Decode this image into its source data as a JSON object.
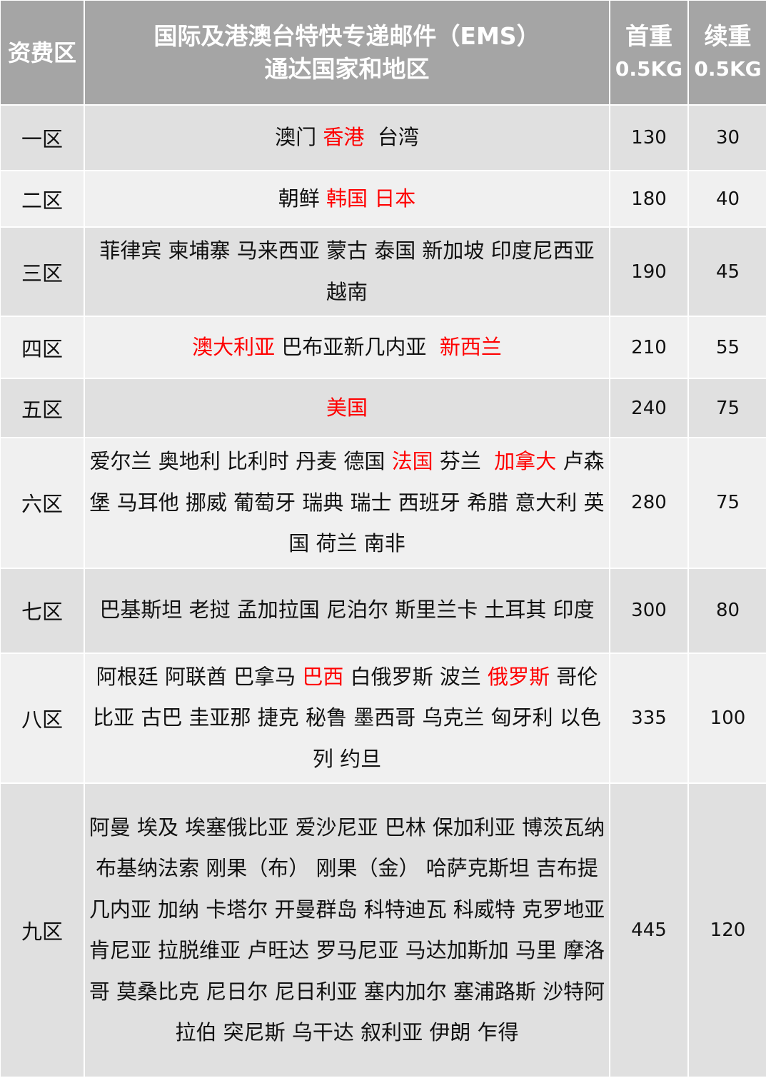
{
  "header": {
    "zone": "资费区",
    "regions_line1": "国际及港澳台特快专递邮件（EMS）",
    "regions_line2": "通达国家和地区",
    "first_weight": "首重",
    "first_weight_unit": "0.5KG",
    "extra_weight": "续重",
    "extra_weight_unit": "0.5KG"
  },
  "colors": {
    "header_bg": "#a5a5a5",
    "row_dark": "#e0e0e0",
    "row_light": "#f0f0f0",
    "highlight": "#ff0000"
  },
  "rows": [
    {
      "zone": "一区",
      "first": "130",
      "extra": "30",
      "segments": [
        {
          "t": "澳门 "
        },
        {
          "t": "香港",
          "red": true
        },
        {
          "t": "  台湾"
        }
      ]
    },
    {
      "zone": "二区",
      "first": "180",
      "extra": "40",
      "segments": [
        {
          "t": "朝鲜 "
        },
        {
          "t": "韩国 日本",
          "red": true
        }
      ]
    },
    {
      "zone": "三区",
      "first": "190",
      "extra": "45",
      "segments": [
        {
          "t": "菲律宾 柬埔寨 马来西亚 蒙古 泰国 新加坡 印度尼西亚 越南"
        }
      ]
    },
    {
      "zone": "四区",
      "first": "210",
      "extra": "55",
      "segments": [
        {
          "t": "澳大利亚",
          "red": true
        },
        {
          "t": " 巴布亚新几内亚  "
        },
        {
          "t": "新西兰",
          "red": true
        }
      ]
    },
    {
      "zone": "五区",
      "first": "240",
      "extra": "75",
      "segments": [
        {
          "t": "美国",
          "red": true
        }
      ]
    },
    {
      "zone": "六区",
      "first": "280",
      "extra": "75",
      "segments": [
        {
          "t": "爱尔兰 奥地利 比利时 丹麦 德国 "
        },
        {
          "t": "法国",
          "red": true
        },
        {
          "t": " 芬兰  "
        },
        {
          "t": "加拿大",
          "red": true
        },
        {
          "t": " 卢森堡 马耳他 挪威 葡萄牙 瑞典 瑞士 西班牙 希腊 意大利 英国 荷兰 南非"
        }
      ]
    },
    {
      "zone": "七区",
      "first": "300",
      "extra": "80",
      "segments": [
        {
          "t": "巴基斯坦 老挝 孟加拉国 尼泊尔 斯里兰卡 土耳其 印度"
        }
      ]
    },
    {
      "zone": "八区",
      "first": "335",
      "extra": "100",
      "segments": [
        {
          "t": "阿根廷 阿联酋 巴拿马 "
        },
        {
          "t": "巴西",
          "red": true
        },
        {
          "t": " 白俄罗斯 波兰 "
        },
        {
          "t": "俄罗斯",
          "red": true
        },
        {
          "t": " 哥伦比亚 古巴 圭亚那 捷克 秘鲁 墨西哥 乌克兰 匈牙利 以色列 约旦"
        }
      ]
    },
    {
      "zone": "九区",
      "first": "445",
      "extra": "120",
      "segments": [
        {
          "t": "阿曼 埃及 埃塞俄比亚 爱沙尼亚 巴林 保加利亚 博茨瓦纳 布基纳法索 刚果（布） 刚果（金） 哈萨克斯坦 吉布提 几内亚 加纳 卡塔尔 开曼群岛 科特迪瓦 科威特 克罗地亚 肯尼亚 拉脱维亚 卢旺达 罗马尼亚 马达加斯加 马里 摩洛哥 莫桑比克 尼日尔 尼日利亚 塞内加尔 塞浦路斯 沙特阿拉伯 突尼斯 乌干达 叙利亚 伊朗 乍得"
        }
      ]
    }
  ]
}
